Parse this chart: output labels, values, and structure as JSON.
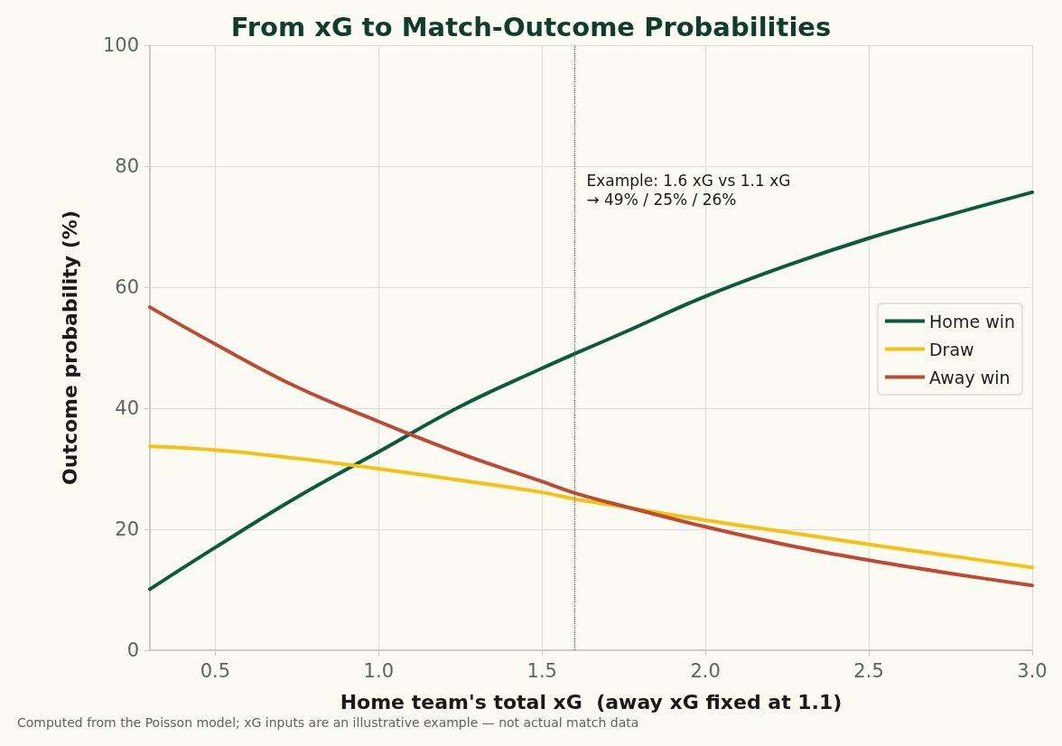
{
  "chart_data": {
    "type": "line",
    "title": "From xG to Match-Outcome Probabilities",
    "xlabel": "Home team's total xG  (away xG fixed at 1.1)",
    "ylabel": "Outcome probability (%)",
    "x": [
      0.3,
      0.5,
      0.75,
      1.0,
      1.25,
      1.5,
      1.6,
      1.75,
      2.0,
      2.25,
      2.5,
      2.75,
      3.0
    ],
    "series": [
      {
        "name": "Home win",
        "color": "#0b5a3c",
        "values": [
          10.1,
          17.0,
          25.3,
          32.8,
          40.3,
          46.6,
          49,
          52.5,
          58.5,
          63.6,
          68.1,
          72.0,
          75.7
        ]
      },
      {
        "name": "Draw",
        "color": "#f5c211",
        "values": [
          33.7,
          33.1,
          31.7,
          30.0,
          28.1,
          26.1,
          25,
          23.7,
          21.5,
          19.5,
          17.5,
          15.6,
          13.7
        ]
      },
      {
        "name": "Away win",
        "color": "#bd4a33",
        "values": [
          56.7,
          50.6,
          43.5,
          37.8,
          32.5,
          27.9,
          26,
          23.8,
          20.4,
          17.4,
          14.9,
          12.7,
          10.7
        ]
      }
    ],
    "xlim": [
      0.3,
      3.0
    ],
    "xticks": [
      {
        "value": 0.5,
        "label": "0.5"
      },
      {
        "value": 1.0,
        "label": "1.0"
      },
      {
        "value": 1.5,
        "label": "1.5"
      },
      {
        "value": 2.0,
        "label": "2.0"
      },
      {
        "value": 2.5,
        "label": "2.5"
      },
      {
        "value": 3.0,
        "label": "3.0"
      }
    ],
    "ylim": [
      0,
      100
    ],
    "yticks": [
      0,
      20,
      40,
      60,
      80,
      100
    ],
    "ref_lines": [
      {
        "axis": "x",
        "value": 1.6,
        "color": "#555555",
        "line_style": "dotted"
      }
    ],
    "annotations": [
      {
        "text": "Example: 1.6 xG vs 1.1 xG\n→ 49% / 25% / 26%",
        "x": 1.6,
        "y": 76
      },
      "Computed from the Poisson model; xG inputs are an illustrative example — not actual match data"
    ],
    "grid": true,
    "legend": "right",
    "marker": "none",
    "line_style": "solid"
  }
}
